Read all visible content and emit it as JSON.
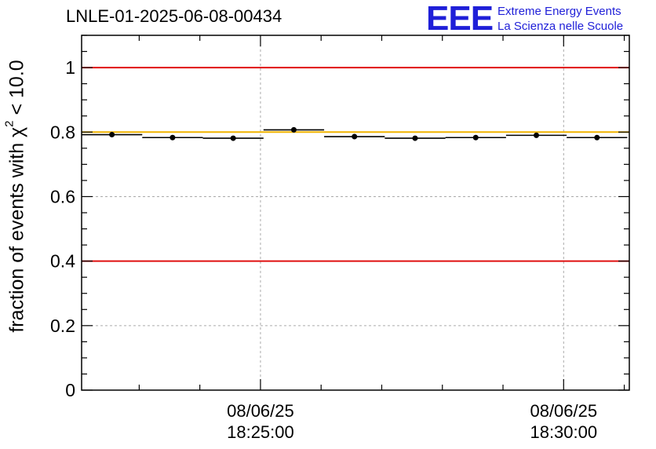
{
  "header": {
    "title": "LNLE-01-2025-06-08-00434"
  },
  "logo": {
    "mark": "EEE",
    "line1": "Extreme Energy Events",
    "line2": "La Scienza nelle Scuole",
    "color": "#1f1fd8"
  },
  "chart_data": {
    "type": "scatter",
    "title": "LNLE-01-2025-06-08-00434",
    "xlabel": "",
    "ylabel_main": "fraction of events with χ",
    "ylabel_sup": "2",
    "ylabel_tail": " < 10.0",
    "ylim": [
      0,
      1.1
    ],
    "xlim": [
      "18:22:03",
      "18:31:05"
    ],
    "y_ticks": [
      "0",
      "0.2",
      "0.4",
      "0.6",
      "0.8",
      "1"
    ],
    "x_tick_labels": [
      {
        "time": "18:25:00",
        "date": "08/06/25"
      },
      {
        "time": "18:30:00",
        "date": "08/06/25"
      }
    ],
    "grid": true,
    "series": [
      {
        "x_start": [
          "18:22:03",
          "18:23:03",
          "18:24:03",
          "18:25:03",
          "18:26:03",
          "18:27:03",
          "18:28:03",
          "18:29:03",
          "18:30:03"
        ],
        "x_end": [
          "18:23:03",
          "18:24:03",
          "18:25:03",
          "18:26:03",
          "18:27:03",
          "18:28:03",
          "18:29:03",
          "18:30:03",
          "18:31:03"
        ],
        "values": [
          0.792,
          0.783,
          0.781,
          0.807,
          0.786,
          0.781,
          0.783,
          0.79,
          0.783
        ],
        "errors": [
          0.006,
          0.007,
          0.007,
          0.006,
          0.006,
          0.006,
          0.006,
          0.006,
          0.007
        ],
        "color": "#000000"
      }
    ],
    "reference_lines": [
      {
        "y": 1.0,
        "color": "#e01010"
      },
      {
        "y": 0.8,
        "color": "#f0b400"
      },
      {
        "y": 0.4,
        "color": "#e01010"
      }
    ]
  }
}
